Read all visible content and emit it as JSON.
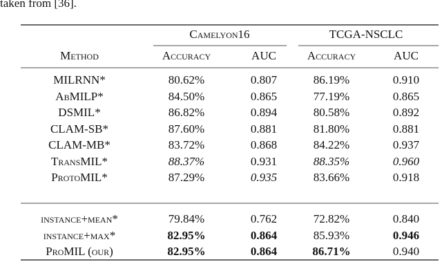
{
  "caption_fragment": "taken from [36].",
  "table": {
    "column_groups": [
      "Camelyon16",
      "TCGA-NSCLC"
    ],
    "header": [
      "Method",
      "Accuracy",
      "AUC",
      "Accuracy",
      "AUC"
    ],
    "rows": [
      [
        "MILRNN*",
        "80.62%",
        "0.807",
        "86.19%",
        "0.910"
      ],
      [
        "AbMILP*",
        "84.50%",
        "0.865",
        "77.19%",
        "0.865"
      ],
      [
        "DSMIL*",
        "86.82%",
        "0.894",
        "80.58%",
        "0.892"
      ],
      [
        "CLAM-SB*",
        "87.60%",
        "0.881",
        "81.80%",
        "0.881"
      ],
      [
        "CLAM-MB*",
        "83.72%",
        "0.868",
        "84.22%",
        "0.937"
      ],
      [
        "TransMIL*",
        "88.37%",
        "0.931",
        "88.35%",
        "0.960"
      ],
      [
        "ProtoMIL*",
        "87.29%",
        "0.935",
        "83.66%",
        "0.918"
      ],
      [
        "instance+mean*",
        "79.84%",
        "0.762",
        "72.82%",
        "0.840"
      ],
      [
        "instance+max*",
        "82.95%",
        "0.864",
        "85.93%",
        "0.946"
      ],
      [
        "ProMIL (our)",
        "82.95%",
        "0.864",
        "86.71%",
        "0.940"
      ]
    ]
  }
}
